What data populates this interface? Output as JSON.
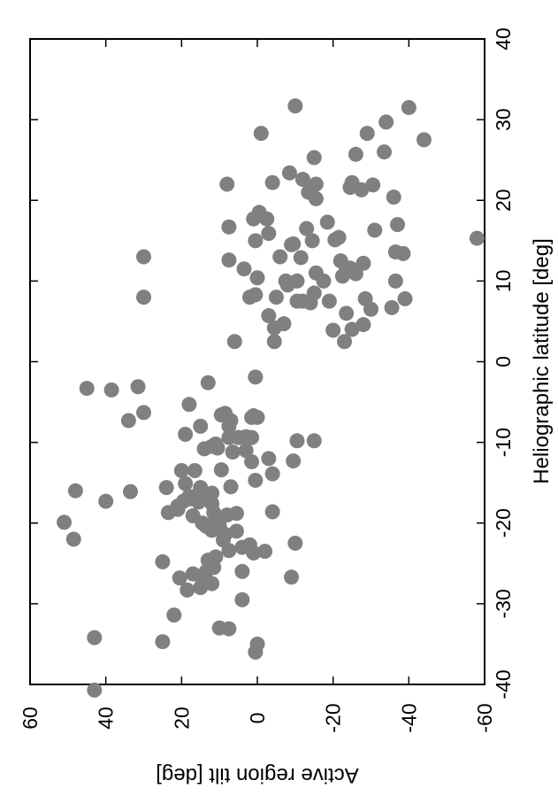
{
  "chart_data": {
    "type": "scatter",
    "orientation": "rotated-90",
    "xlabel": "Heliographic latitude [deg]",
    "ylabel": "Active region tilt [deg]",
    "xlim": [
      -40,
      40
    ],
    "ylim": [
      -60,
      60
    ],
    "xticks": [
      "-40",
      "-30",
      "-20",
      "-10",
      "0",
      "10",
      "20",
      "30",
      "40"
    ],
    "yticks": [
      "-60",
      "-40",
      "-20",
      "0",
      "20",
      "40",
      "60"
    ],
    "grid": false,
    "marker_color": "#808080",
    "points": [
      [
        -40.7,
        43.0
      ],
      [
        -35.0,
        0.0
      ],
      [
        -34.7,
        25.0
      ],
      [
        -34.2,
        43.0
      ],
      [
        -33.1,
        7.5
      ],
      [
        -31.4,
        22.0
      ],
      [
        -29.5,
        4.0
      ],
      [
        -28.3,
        18.5
      ],
      [
        -27.5,
        12.0
      ],
      [
        -27.2,
        13.5
      ],
      [
        -26.7,
        -9.0
      ],
      [
        -26.6,
        15.0
      ],
      [
        -26.3,
        17.0
      ],
      [
        -26.0,
        4.0
      ],
      [
        -25.3,
        12.5
      ],
      [
        -24.8,
        25.0
      ],
      [
        -24.2,
        11.0
      ],
      [
        -23.7,
        1.0
      ],
      [
        -23.4,
        7.5
      ],
      [
        -23.0,
        4.0
      ],
      [
        -22.7,
        2.0
      ],
      [
        -22.5,
        -10.0
      ],
      [
        -22.0,
        48.5
      ],
      [
        -21.4,
        8.5
      ],
      [
        -20.9,
        12.0
      ],
      [
        -20.4,
        10.0
      ],
      [
        -20.0,
        14.5
      ],
      [
        -19.9,
        51.0
      ],
      [
        -19.1,
        17.0
      ],
      [
        -18.8,
        5.5
      ],
      [
        -18.7,
        23.5
      ],
      [
        -18.6,
        -4.0
      ],
      [
        -18.3,
        21.0
      ],
      [
        -17.9,
        21.0
      ],
      [
        -17.6,
        12.0
      ],
      [
        -17.3,
        19.5
      ],
      [
        -17.3,
        40.0
      ],
      [
        -17.0,
        17.5
      ],
      [
        -16.7,
        18.0
      ],
      [
        -16.5,
        14.0
      ],
      [
        -16.3,
        12.0
      ],
      [
        -16.1,
        33.5
      ],
      [
        -16.0,
        48.0
      ],
      [
        -15.6,
        24.0
      ],
      [
        -15.6,
        15.0
      ],
      [
        -15.5,
        7.0
      ],
      [
        -14.7,
        0.5
      ],
      [
        -13.9,
        -4.0
      ],
      [
        -13.5,
        20.0
      ],
      [
        -13.5,
        16.5
      ],
      [
        -12.3,
        -9.5
      ],
      [
        -12.0,
        -3.0
      ],
      [
        -11.2,
        6.5
      ],
      [
        -10.8,
        14.0
      ],
      [
        -10.7,
        10.5
      ],
      [
        -10.5,
        12.0
      ],
      [
        -10.2,
        11.0
      ],
      [
        -9.8,
        -15.0
      ],
      [
        -9.8,
        -10.5
      ],
      [
        -9.4,
        5.0
      ],
      [
        -9.4,
        7.5
      ],
      [
        -9.3,
        3.0
      ],
      [
        -9.0,
        19.0
      ],
      [
        -8.0,
        7.5
      ],
      [
        -7.3,
        7.0
      ],
      [
        -6.9,
        0.0
      ],
      [
        -6.9,
        1.5
      ],
      [
        -5.3,
        18.0
      ],
      [
        -3.5,
        38.5
      ],
      [
        -3.3,
        45.0
      ],
      [
        -3.1,
        31.5
      ],
      [
        -2.6,
        13.0
      ],
      [
        -1.9,
        0.5
      ],
      [
        -6.3,
        30.0
      ],
      [
        -7.3,
        34.0
      ],
      [
        -6.7,
        1.0
      ],
      [
        -6.6,
        9.5
      ],
      [
        -6.4,
        8.5
      ],
      [
        -8.0,
        15.0
      ],
      [
        -9.4,
        1.5
      ],
      [
        -11.0,
        3.0
      ],
      [
        -12.4,
        1.5
      ],
      [
        -13.4,
        9.5
      ],
      [
        -15.1,
        19.0
      ],
      [
        -16.6,
        16.0
      ],
      [
        -17.4,
        15.5
      ],
      [
        -18.7,
        11.5
      ],
      [
        -19.0,
        8.0
      ],
      [
        -19.6,
        11.0
      ],
      [
        -20.4,
        13.5
      ],
      [
        -21.0,
        5.5
      ],
      [
        -22.1,
        9.0
      ],
      [
        -23.5,
        -2.0
      ],
      [
        -24.6,
        13.0
      ],
      [
        -25.5,
        11.5
      ],
      [
        -26.0,
        13.5
      ],
      [
        -26.8,
        20.5
      ],
      [
        -28.0,
        15.0
      ],
      [
        -33.0,
        10.0
      ],
      [
        -36.0,
        0.5
      ],
      [
        13.0,
        30.0
      ],
      [
        8.0,
        30.0
      ],
      [
        22.0,
        8.0
      ],
      [
        31.7,
        -10.0
      ],
      [
        28.3,
        -1.0
      ],
      [
        27.5,
        -44.0
      ],
      [
        31.5,
        -40.0
      ],
      [
        29.7,
        -34.0
      ],
      [
        28.3,
        -29.0
      ],
      [
        26.0,
        -33.5
      ],
      [
        25.7,
        -26.0
      ],
      [
        25.3,
        -15.0
      ],
      [
        23.4,
        -8.5
      ],
      [
        22.6,
        -12.0
      ],
      [
        22.2,
        -4.0
      ],
      [
        22.0,
        -15.5
      ],
      [
        22.2,
        -25.0
      ],
      [
        21.9,
        -30.5
      ],
      [
        21.6,
        -24.5
      ],
      [
        21.3,
        -27.5
      ],
      [
        21.0,
        -13.5
      ],
      [
        20.4,
        -36.0
      ],
      [
        20.2,
        -15.5
      ],
      [
        18.5,
        -0.5
      ],
      [
        17.7,
        -2.5
      ],
      [
        17.7,
        1.0
      ],
      [
        17.3,
        -18.5
      ],
      [
        17.0,
        -37.0
      ],
      [
        16.7,
        7.5
      ],
      [
        16.3,
        -31.0
      ],
      [
        15.9,
        -3.0
      ],
      [
        15.4,
        -21.5
      ],
      [
        15.3,
        -58.0
      ],
      [
        15.1,
        -20.5
      ],
      [
        15.0,
        -14.5
      ],
      [
        15.0,
        0.5
      ],
      [
        14.6,
        -9.5
      ],
      [
        13.6,
        -36.5
      ],
      [
        13.4,
        -38.5
      ],
      [
        13.0,
        -6.0
      ],
      [
        12.9,
        -11.5
      ],
      [
        12.6,
        7.5
      ],
      [
        12.5,
        -22.0
      ],
      [
        12.2,
        -28.0
      ],
      [
        11.6,
        -24.5
      ],
      [
        11.5,
        3.5
      ],
      [
        11.5,
        -23.5
      ],
      [
        10.9,
        -26.0
      ],
      [
        10.6,
        -22.5
      ],
      [
        10.4,
        0.0
      ],
      [
        10.0,
        -10.5
      ],
      [
        10.0,
        -17.5
      ],
      [
        10.0,
        -7.5
      ],
      [
        10.0,
        -36.5
      ],
      [
        8.5,
        -15.0
      ],
      [
        8.3,
        0.5
      ],
      [
        8.0,
        -5.0
      ],
      [
        8.0,
        2.0
      ],
      [
        7.8,
        -39.0
      ],
      [
        7.8,
        -28.5
      ],
      [
        7.5,
        -12.0
      ],
      [
        7.5,
        -19.0
      ],
      [
        7.5,
        -10.5
      ],
      [
        7.3,
        -14.0
      ],
      [
        6.5,
        -30.0
      ],
      [
        6.0,
        -23.5
      ],
      [
        5.7,
        -3.0
      ],
      [
        4.7,
        -7.0
      ],
      [
        4.2,
        -4.5
      ],
      [
        4.0,
        -25.0
      ],
      [
        2.5,
        -4.5
      ],
      [
        2.5,
        6.0
      ],
      [
        2.5,
        -23.0
      ],
      [
        11.0,
        -15.5
      ],
      [
        9.5,
        -8.0
      ],
      [
        6.7,
        -35.5
      ],
      [
        4.6,
        -28.0
      ],
      [
        3.9,
        -20.0
      ],
      [
        14.5,
        -9.0
      ],
      [
        16.5,
        -13.0
      ]
    ]
  }
}
